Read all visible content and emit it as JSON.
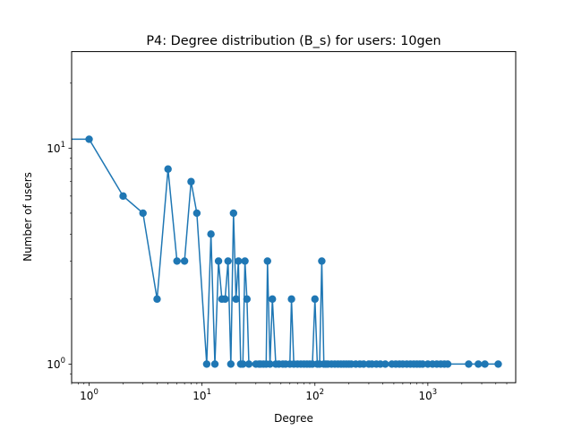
{
  "chart_data": {
    "type": "line",
    "title": "P4: Degree distribution (B_s) for users: 10gen",
    "xlabel": "Degree",
    "ylabel": "Number of users",
    "xscale": "log",
    "yscale": "log",
    "xlim": [
      0.7,
      6000
    ],
    "ylim": [
      0.82,
      28
    ],
    "grid": false,
    "legend": "none",
    "color": "#1f77b4",
    "x_ticks": [
      {
        "value": 1,
        "base": "10",
        "exp": "0"
      },
      {
        "value": 10,
        "base": "10",
        "exp": "1"
      },
      {
        "value": 100,
        "base": "10",
        "exp": "2"
      },
      {
        "value": 1000,
        "base": "10",
        "exp": "3"
      }
    ],
    "y_ticks": [
      {
        "value": 1,
        "base": "10",
        "exp": "0"
      },
      {
        "value": 10,
        "base": "10",
        "exp": "1"
      }
    ],
    "series": [
      {
        "x": [
          0,
          1,
          2,
          3,
          4,
          5,
          6,
          7,
          8,
          9,
          11,
          12,
          13,
          14,
          15,
          16,
          17,
          18,
          19,
          20,
          21,
          22,
          23,
          24,
          25,
          26,
          30,
          32,
          33,
          35,
          37,
          38,
          40,
          42,
          45,
          48,
          52,
          55,
          60,
          62,
          65,
          70,
          75,
          80,
          85,
          90,
          95,
          100,
          105,
          110,
          115,
          120,
          125,
          130,
          140,
          150,
          160,
          170,
          180,
          190,
          200,
          210,
          230,
          250,
          270,
          300,
          320,
          350,
          380,
          420,
          480,
          520,
          560,
          600,
          650,
          700,
          750,
          800,
          850,
          900,
          1000,
          1100,
          1200,
          1300,
          1400,
          1500,
          2300,
          2800,
          3200,
          4200
        ],
        "y": [
          11,
          11,
          6,
          5,
          2,
          8,
          3,
          3,
          7,
          5,
          1,
          4,
          1,
          3,
          2,
          2,
          3,
          1,
          5,
          2,
          3,
          1,
          1,
          3,
          2,
          1,
          1,
          1,
          1,
          1,
          1,
          3,
          1,
          2,
          1,
          1,
          1,
          1,
          1,
          2,
          1,
          1,
          1,
          1,
          1,
          1,
          1,
          2,
          1,
          1,
          3,
          1,
          1,
          1,
          1,
          1,
          1,
          1,
          1,
          1,
          1,
          1,
          1,
          1,
          1,
          1,
          1,
          1,
          1,
          1,
          1,
          1,
          1,
          1,
          1,
          1,
          1,
          1,
          1,
          1,
          1,
          1,
          1,
          1,
          1,
          1,
          1,
          1,
          1,
          1
        ]
      }
    ]
  }
}
